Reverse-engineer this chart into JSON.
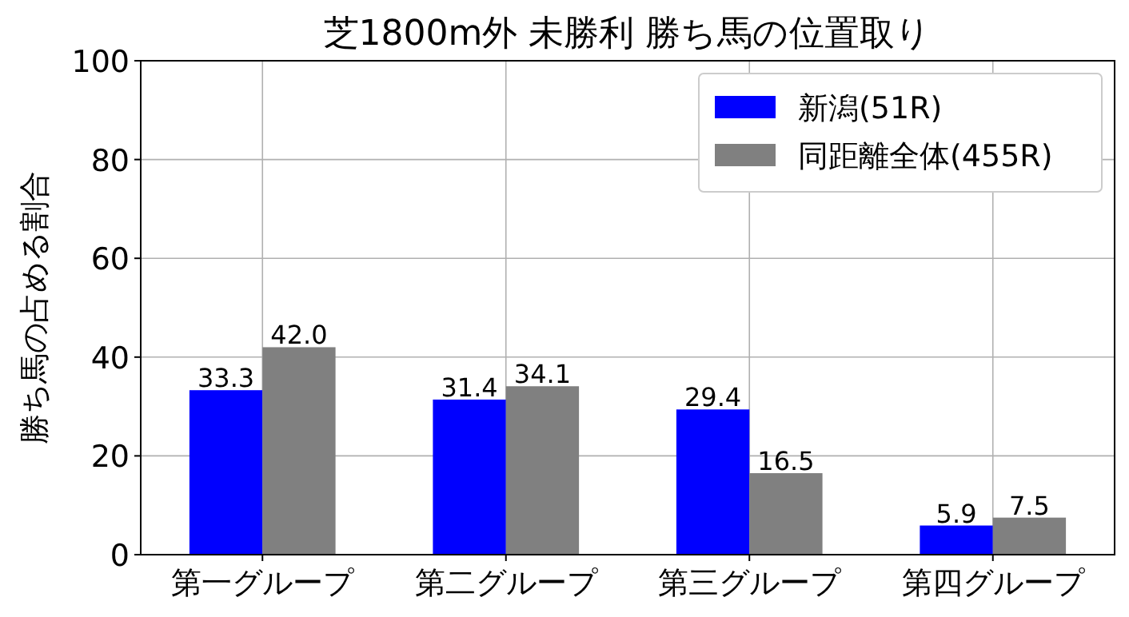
{
  "chart_data": {
    "type": "bar",
    "title": "芝1800m外 未勝利 勝ち馬の位置取り",
    "ylabel": "勝ち馬の占める割合",
    "categories": [
      "第一グループ",
      "第二グループ",
      "第三グループ",
      "第四グループ"
    ],
    "series": [
      {
        "name": "新潟(51R)",
        "color": "#0000ff",
        "values": [
          33.3,
          31.4,
          29.4,
          5.9
        ],
        "value_labels": [
          "33.3",
          "31.4",
          "29.4",
          "5.9"
        ]
      },
      {
        "name": "同距離全体(455R)",
        "color": "#808080",
        "values": [
          42.0,
          34.1,
          16.5,
          7.5
        ],
        "value_labels": [
          "42.0",
          "34.1",
          "16.5",
          "7.5"
        ]
      }
    ],
    "ylim": [
      0,
      100
    ],
    "yticks": [
      0,
      20,
      40,
      60,
      80,
      100
    ],
    "grid": true,
    "legend": "top right"
  }
}
